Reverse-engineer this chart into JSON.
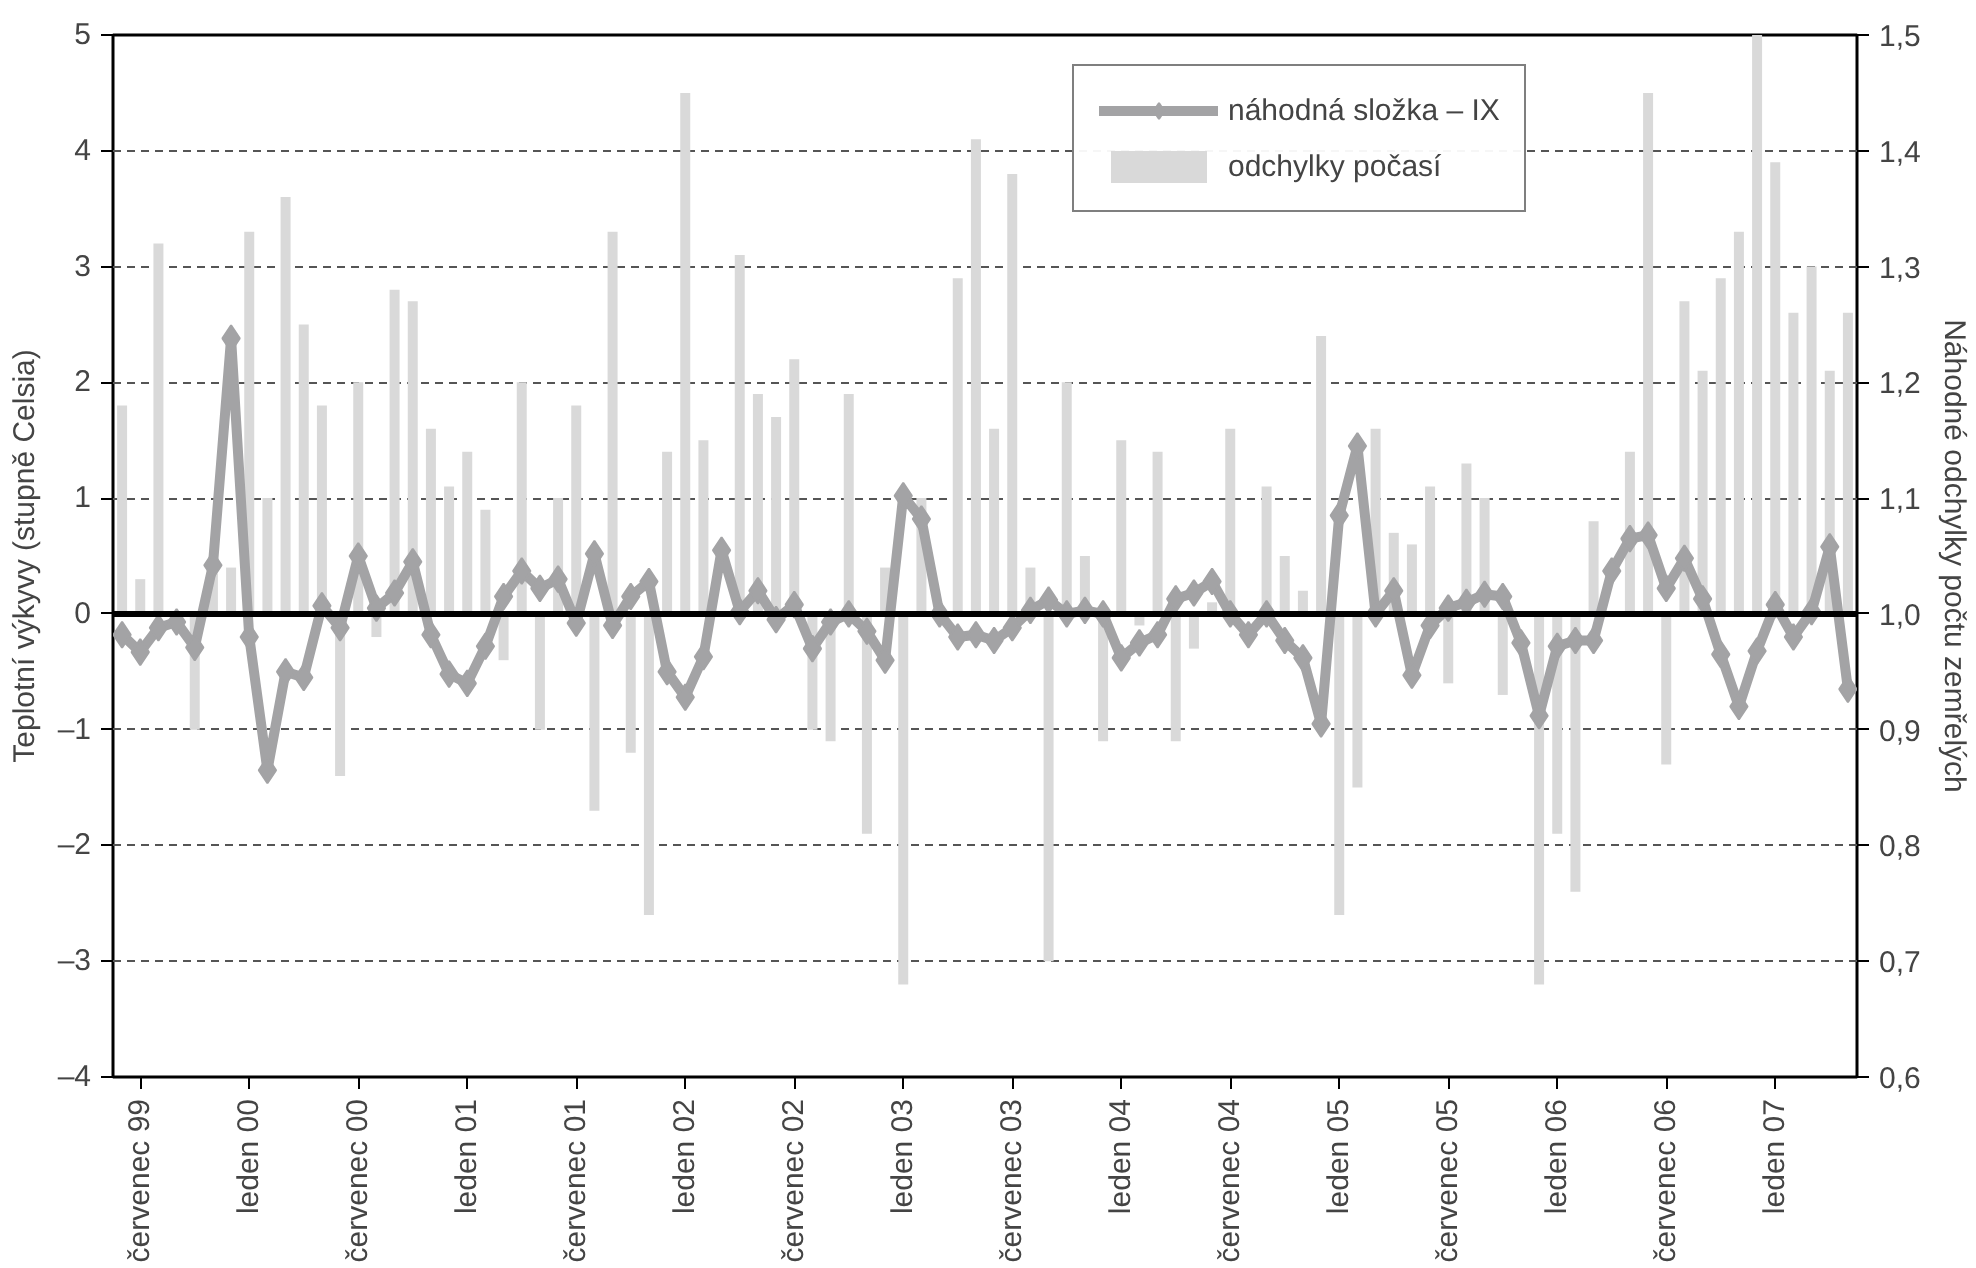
{
  "chart_data": {
    "type": "bar",
    "categories": [
      null,
      "červenec 99",
      null,
      null,
      null,
      null,
      null,
      "leden 00",
      null,
      null,
      null,
      null,
      null,
      "červenec 00",
      null,
      null,
      null,
      null,
      null,
      "leden 01",
      null,
      null,
      null,
      null,
      null,
      "červenec 01",
      null,
      null,
      null,
      null,
      null,
      "leden 02",
      null,
      null,
      null,
      null,
      null,
      "červenec 02",
      null,
      null,
      null,
      null,
      null,
      "leden 03",
      null,
      null,
      null,
      null,
      null,
      "červenec 03",
      null,
      null,
      null,
      null,
      null,
      "leden 04",
      null,
      null,
      null,
      null,
      null,
      "červenec 04",
      null,
      null,
      null,
      null,
      null,
      "leden 05",
      null,
      null,
      null,
      null,
      null,
      "červenec 05",
      null,
      null,
      null,
      null,
      null,
      "leden 06",
      null,
      null,
      null,
      null,
      null,
      "červenec 06",
      null,
      null,
      null,
      null,
      null,
      "leden 07",
      null,
      null,
      null,
      null
    ],
    "series": [
      {
        "name": "odchylky počasí",
        "color": "#d9d9d9",
        "values": [
          1.8,
          0.3,
          3.2,
          null,
          -1.0,
          0.35,
          0.4,
          3.3,
          1.0,
          3.6,
          2.5,
          1.8,
          -1.4,
          2.0,
          -0.2,
          2.8,
          2.7,
          1.6,
          1.1,
          1.4,
          0.9,
          -0.4,
          2.0,
          -1.0,
          1.0,
          1.8,
          -1.7,
          3.3,
          -1.2,
          -2.6,
          1.4,
          4.5,
          1.5,
          null,
          3.1,
          1.9,
          1.7,
          2.2,
          -1.0,
          -1.1,
          1.9,
          -1.9,
          0.4,
          -3.2,
          1.0,
          null,
          2.9,
          4.1,
          1.6,
          3.8,
          0.4,
          -3.0,
          2.0,
          0.5,
          -1.1,
          1.5,
          -0.1,
          1.4,
          -1.1,
          -0.3,
          0.1,
          1.6,
          null,
          1.1,
          0.5,
          0.2,
          2.4,
          -2.6,
          -1.5,
          1.6,
          0.7,
          0.6,
          1.1,
          -0.6,
          1.3,
          1.0,
          -0.7,
          null,
          -3.2,
          -1.9,
          -2.4,
          0.8,
          null,
          1.4,
          4.5,
          -1.3,
          2.7,
          2.1,
          2.9,
          3.3,
          5.0,
          3.9,
          2.6,
          3.0,
          2.1,
          2.6
        ]
      },
      {
        "name": "náhodná složka – IX",
        "type": "line",
        "axis": "y2",
        "color": "#a3a3a5",
        "marker": "diamond",
        "values": [
          0.982,
          0.967,
          0.988,
          0.993,
          0.971,
          1.042,
          1.238,
          0.98,
          0.865,
          0.95,
          0.945,
          1.007,
          0.988,
          1.05,
          1.005,
          1.018,
          1.045,
          0.982,
          0.948,
          0.94,
          0.972,
          1.015,
          1.037,
          1.022,
          1.03,
          0.992,
          1.052,
          0.99,
          1.015,
          1.028,
          0.95,
          0.928,
          0.963,
          1.055,
          1.002,
          1.02,
          0.995,
          1.008,
          0.97,
          0.993,
          1.0,
          0.985,
          0.96,
          1.102,
          1.082,
          1.0,
          0.98,
          0.982,
          0.977,
          0.988,
          1.003,
          1.012,
          1.0,
          1.003,
          1.0,
          0.962,
          0.975,
          0.982,
          1.013,
          1.018,
          1.028,
          1.0,
          0.982,
          1.0,
          0.977,
          0.962,
          0.905,
          1.085,
          1.145,
          1.0,
          1.02,
          0.947,
          0.99,
          1.005,
          1.01,
          1.017,
          1.015,
          0.975,
          0.912,
          0.972,
          0.977,
          0.977,
          1.037,
          1.065,
          1.068,
          1.022,
          1.048,
          1.013,
          0.965,
          0.92,
          0.968,
          1.008,
          0.98,
          1.002,
          1.058,
          0.935
        ]
      }
    ],
    "ylabel": "Teplotní výkyvy (stupně Celsia)",
    "y2label": "Náhodné odchylky počtu zemřelých",
    "ylim": [
      -4,
      5
    ],
    "yticks": [
      {
        "value": -4,
        "label": "–4"
      },
      {
        "value": -3,
        "label": "–3"
      },
      {
        "value": -2,
        "label": "–2"
      },
      {
        "value": -1,
        "label": "–1"
      },
      0,
      1,
      2,
      3,
      4,
      5
    ],
    "y2lim": [
      0.6,
      1.5
    ],
    "y2ticks": [
      {
        "value": 0.6,
        "label": "0,6"
      },
      {
        "value": 0.7,
        "label": "0,7"
      },
      {
        "value": 0.8,
        "label": "0,8"
      },
      {
        "value": 0.9,
        "label": "0,9"
      },
      {
        "value": 1.0,
        "label": "1,0"
      },
      {
        "value": 1.1,
        "label": "1,1"
      },
      {
        "value": 1.2,
        "label": "1,2"
      },
      {
        "value": 1.3,
        "label": "1,3"
      },
      {
        "value": 1.4,
        "label": "1,4"
      },
      {
        "value": 1.5,
        "label": "1,5"
      }
    ],
    "ref_lines": [
      {
        "axis": "y",
        "value": 0,
        "color": "#000000"
      }
    ],
    "grid": "y",
    "legend": "top"
  }
}
